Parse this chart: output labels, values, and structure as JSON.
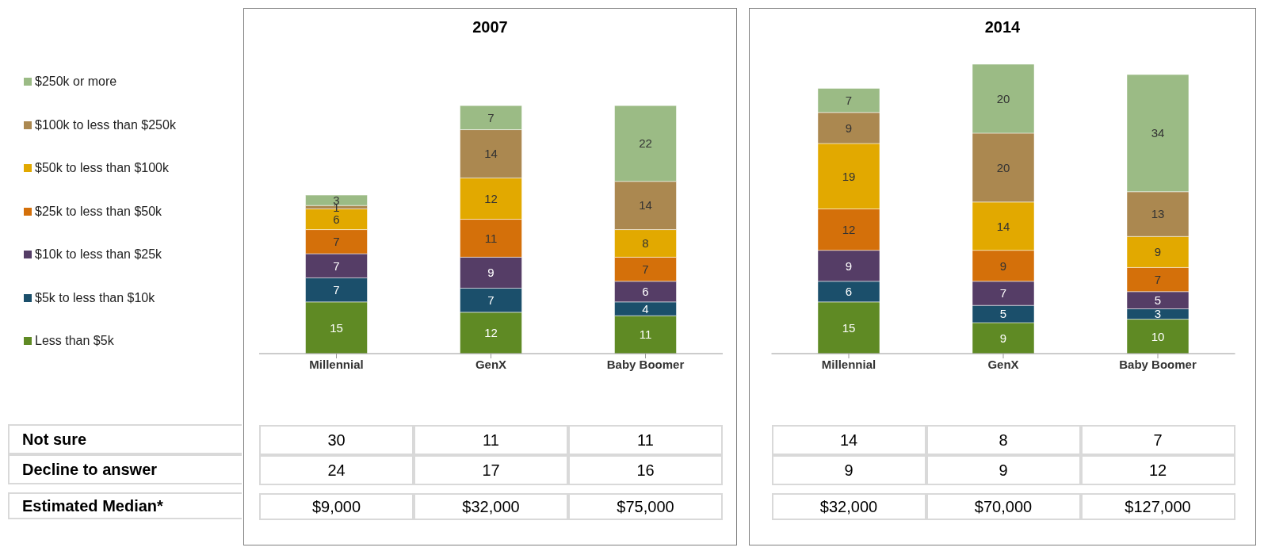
{
  "chart_data": [
    {
      "type": "bar",
      "title": "2007",
      "stacked": true,
      "data_labels": true,
      "legend": "left",
      "categories": [
        "Millennial",
        "GenX",
        "Baby Boomer"
      ],
      "series": [
        {
          "name": "Less than $5k",
          "color": "#5f8a24",
          "values": [
            15,
            12,
            11
          ]
        },
        {
          "name": "$5k to less than $10k",
          "color": "#1b4f6b",
          "values": [
            7,
            7,
            4
          ]
        },
        {
          "name": "$10k to less than $25k",
          "color": "#553d66",
          "values": [
            7,
            9,
            6
          ]
        },
        {
          "name": "$25k to less than $50k",
          "color": "#d4700a",
          "values": [
            7,
            11,
            7
          ]
        },
        {
          "name": "$50k to less than $100k",
          "color": "#e2a900",
          "values": [
            6,
            12,
            8
          ]
        },
        {
          "name": "$100k to less than $250k",
          "color": "#ab8850",
          "values": [
            1,
            14,
            14
          ]
        },
        {
          "name": "$250k or more",
          "color": "#9bbb85",
          "values": [
            3,
            7,
            22
          ]
        }
      ],
      "annotations": [
        "Not sure",
        "30",
        "11",
        "11",
        "Decline to answer",
        "24",
        "17",
        "16",
        "Estimated Median*",
        "$9,000",
        "$32,000",
        "$75,000"
      ]
    },
    {
      "type": "bar",
      "title": "2014",
      "stacked": true,
      "data_labels": true,
      "categories": [
        "Millennial",
        "GenX",
        "Baby Boomer"
      ],
      "series": [
        {
          "color": "#5f8a24",
          "values": [
            15,
            9,
            10
          ]
        },
        {
          "color": "#1b4f6b",
          "values": [
            6,
            5,
            3
          ]
        },
        {
          "color": "#553d66",
          "values": [
            9,
            7,
            5
          ]
        },
        {
          "color": "#d4700a",
          "values": [
            12,
            9,
            7
          ]
        },
        {
          "color": "#e2a900",
          "values": [
            19,
            14,
            9
          ]
        },
        {
          "color": "#ab8850",
          "values": [
            9,
            20,
            13
          ]
        },
        {
          "color": "#9bbb85",
          "values": [
            7,
            20,
            34
          ]
        }
      ],
      "annotations": [
        "14",
        "8",
        "7",
        "9",
        "9",
        "12",
        "$32,000",
        "$70,000",
        "$127,000"
      ]
    }
  ]
}
